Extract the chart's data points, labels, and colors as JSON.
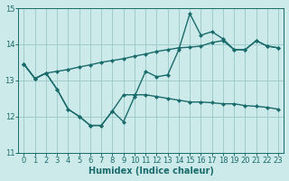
{
  "background_color": "#cdeaea",
  "grid_color": "#a0cccc",
  "line_color": "#1a6b6b",
  "marker": "D",
  "markersize": 2.5,
  "linewidth": 1.0,
  "xlabel": "Humidex (Indice chaleur)",
  "xlabel_fontsize": 7,
  "tick_fontsize": 6,
  "ylim": [
    11,
    15
  ],
  "xlim": [
    -0.5,
    23.5
  ],
  "yticks": [
    11,
    12,
    13,
    14,
    15
  ],
  "xticks": [
    0,
    1,
    2,
    3,
    4,
    5,
    6,
    7,
    8,
    9,
    10,
    11,
    12,
    13,
    14,
    15,
    16,
    17,
    18,
    19,
    20,
    21,
    22,
    23
  ],
  "series1_x": [
    0,
    1,
    2,
    3,
    4,
    5,
    6,
    7,
    8,
    9,
    10,
    11,
    12,
    13,
    14,
    15,
    16,
    17,
    18,
    19,
    20,
    21,
    22,
    23
  ],
  "series1_y": [
    13.45,
    13.05,
    13.2,
    13.25,
    13.3,
    13.37,
    13.43,
    13.5,
    13.55,
    13.6,
    13.67,
    13.73,
    13.8,
    13.85,
    13.9,
    13.92,
    13.95,
    14.05,
    14.1,
    13.85,
    13.85,
    14.1,
    13.95,
    13.9
  ],
  "series2_x": [
    0,
    1,
    2,
    3,
    4,
    5,
    6,
    7,
    8,
    9,
    10,
    11,
    12,
    13,
    14,
    15,
    16,
    17,
    18,
    19,
    20,
    21,
    22,
    23
  ],
  "series2_y": [
    13.45,
    13.05,
    13.2,
    12.75,
    12.2,
    12.0,
    11.75,
    11.75,
    12.15,
    11.85,
    12.55,
    13.25,
    13.1,
    13.15,
    13.85,
    14.85,
    14.25,
    14.35,
    14.15,
    13.85,
    13.85,
    14.1,
    13.95,
    13.9
  ],
  "series3_x": [
    0,
    1,
    2,
    3,
    4,
    5,
    6,
    7,
    8,
    9,
    10,
    11,
    12,
    13,
    14,
    15,
    16,
    17,
    18,
    19,
    20,
    21,
    22,
    23
  ],
  "series3_y": [
    13.45,
    13.05,
    13.2,
    12.75,
    12.2,
    12.0,
    11.75,
    11.75,
    12.15,
    12.6,
    12.6,
    12.6,
    12.55,
    12.5,
    12.45,
    12.4,
    12.4,
    12.38,
    12.35,
    12.35,
    12.3,
    12.28,
    12.25,
    12.2
  ]
}
